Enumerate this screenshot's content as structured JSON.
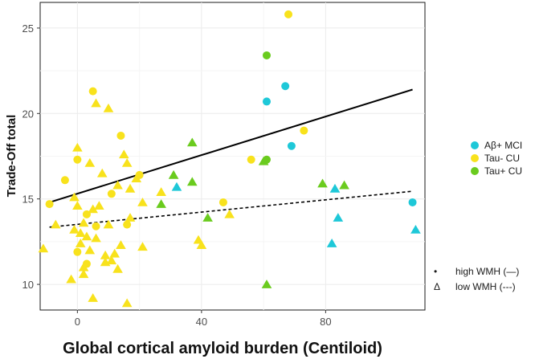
{
  "chart_data": {
    "type": "scatter",
    "xlabel": "Global cortical amyloid burden (Centiloid)",
    "ylabel": "Trade-Off total",
    "xlim": [
      -12,
      112
    ],
    "ylim": [
      8.5,
      26.5
    ],
    "x_ticks": [
      0,
      40,
      80
    ],
    "x_tick_labels": [
      "0",
      "40",
      "80"
    ],
    "y_ticks": [
      10,
      15,
      20,
      25
    ],
    "y_tick_labels": [
      "10",
      "15",
      "20",
      "25"
    ],
    "grid": true,
    "legend_placement": "right",
    "groups": [
      {
        "name": "Aβ+ MCI",
        "color": "#1ec8d8"
      },
      {
        "name": "Tau- CU",
        "color": "#f8e21c"
      },
      {
        "name": "Tau+ CU",
        "color": "#6acb1e"
      }
    ],
    "shape_legend": [
      {
        "symbol": "•",
        "label": "high WMH (—)"
      },
      {
        "symbol": "Δ",
        "label": "low WMH (---)"
      }
    ],
    "fit_lines": [
      {
        "name": "high WMH",
        "style": "solid",
        "x": [
          -9,
          108
        ],
        "y": [
          14.8,
          21.4
        ]
      },
      {
        "name": "low WMH",
        "style": "dashed",
        "x": [
          -9,
          108
        ],
        "y": [
          13.35,
          15.45
        ]
      }
    ],
    "points": [
      {
        "x": -9,
        "y": 14.7,
        "group": "Tau- CU",
        "wmh": "high"
      },
      {
        "x": -4,
        "y": 16.1,
        "group": "Tau- CU",
        "wmh": "high"
      },
      {
        "x": 0,
        "y": 17.3,
        "group": "Tau- CU",
        "wmh": "high"
      },
      {
        "x": 0,
        "y": 11.9,
        "group": "Tau- CU",
        "wmh": "high"
      },
      {
        "x": 3,
        "y": 14.1,
        "group": "Tau- CU",
        "wmh": "high"
      },
      {
        "x": 3,
        "y": 11.2,
        "group": "Tau- CU",
        "wmh": "high"
      },
      {
        "x": 5,
        "y": 21.3,
        "group": "Tau- CU",
        "wmh": "high"
      },
      {
        "x": 6,
        "y": 13.4,
        "group": "Tau- CU",
        "wmh": "high"
      },
      {
        "x": 11,
        "y": 15.3,
        "group": "Tau- CU",
        "wmh": "high"
      },
      {
        "x": 14,
        "y": 18.7,
        "group": "Tau- CU",
        "wmh": "high"
      },
      {
        "x": 16,
        "y": 13.5,
        "group": "Tau- CU",
        "wmh": "high"
      },
      {
        "x": 20,
        "y": 16.4,
        "group": "Tau- CU",
        "wmh": "high"
      },
      {
        "x": 47,
        "y": 14.8,
        "group": "Tau- CU",
        "wmh": "high"
      },
      {
        "x": 56,
        "y": 17.3,
        "group": "Tau- CU",
        "wmh": "high"
      },
      {
        "x": 68,
        "y": 25.8,
        "group": "Tau- CU",
        "wmh": "high"
      },
      {
        "x": 73,
        "y": 19.0,
        "group": "Tau- CU",
        "wmh": "high"
      },
      {
        "x": 61,
        "y": 23.4,
        "group": "Tau+ CU",
        "wmh": "high"
      },
      {
        "x": 61,
        "y": 17.3,
        "group": "Tau+ CU",
        "wmh": "high"
      },
      {
        "x": 61,
        "y": 20.7,
        "group": "Aβ+ MCI",
        "wmh": "high"
      },
      {
        "x": 67,
        "y": 21.6,
        "group": "Aβ+ MCI",
        "wmh": "high"
      },
      {
        "x": 69,
        "y": 18.1,
        "group": "Aβ+ MCI",
        "wmh": "high"
      },
      {
        "x": 108,
        "y": 14.8,
        "group": "Aβ+ MCI",
        "wmh": "high"
      },
      {
        "x": -11,
        "y": 12.1,
        "group": "Tau- CU",
        "wmh": "low"
      },
      {
        "x": -7,
        "y": 13.5,
        "group": "Tau- CU",
        "wmh": "low"
      },
      {
        "x": -2,
        "y": 10.3,
        "group": "Tau- CU",
        "wmh": "low"
      },
      {
        "x": -1,
        "y": 13.2,
        "group": "Tau- CU",
        "wmh": "low"
      },
      {
        "x": -1,
        "y": 15.1,
        "group": "Tau- CU",
        "wmh": "low"
      },
      {
        "x": 0,
        "y": 18.0,
        "group": "Tau- CU",
        "wmh": "low"
      },
      {
        "x": 0,
        "y": 14.6,
        "group": "Tau- CU",
        "wmh": "low"
      },
      {
        "x": 1,
        "y": 13.0,
        "group": "Tau- CU",
        "wmh": "low"
      },
      {
        "x": 1,
        "y": 12.4,
        "group": "Tau- CU",
        "wmh": "low"
      },
      {
        "x": 2,
        "y": 11.0,
        "group": "Tau- CU",
        "wmh": "low"
      },
      {
        "x": 2,
        "y": 10.6,
        "group": "Tau- CU",
        "wmh": "low"
      },
      {
        "x": 2,
        "y": 13.6,
        "group": "Tau- CU",
        "wmh": "low"
      },
      {
        "x": 3,
        "y": 12.8,
        "group": "Tau- CU",
        "wmh": "low"
      },
      {
        "x": 4,
        "y": 17.1,
        "group": "Tau- CU",
        "wmh": "low"
      },
      {
        "x": 4,
        "y": 12.0,
        "group": "Tau- CU",
        "wmh": "low"
      },
      {
        "x": 5,
        "y": 9.2,
        "group": "Tau- CU",
        "wmh": "low"
      },
      {
        "x": 5,
        "y": 14.4,
        "group": "Tau- CU",
        "wmh": "low"
      },
      {
        "x": 6,
        "y": 20.6,
        "group": "Tau- CU",
        "wmh": "low"
      },
      {
        "x": 6,
        "y": 12.7,
        "group": "Tau- CU",
        "wmh": "low"
      },
      {
        "x": 7,
        "y": 14.6,
        "group": "Tau- CU",
        "wmh": "low"
      },
      {
        "x": 8,
        "y": 16.5,
        "group": "Tau- CU",
        "wmh": "low"
      },
      {
        "x": 9,
        "y": 11.3,
        "group": "Tau- CU",
        "wmh": "low"
      },
      {
        "x": 9,
        "y": 11.7,
        "group": "Tau- CU",
        "wmh": "low"
      },
      {
        "x": 10,
        "y": 20.3,
        "group": "Tau- CU",
        "wmh": "low"
      },
      {
        "x": 10,
        "y": 13.5,
        "group": "Tau- CU",
        "wmh": "low"
      },
      {
        "x": 11,
        "y": 11.4,
        "group": "Tau- CU",
        "wmh": "low"
      },
      {
        "x": 12,
        "y": 11.8,
        "group": "Tau- CU",
        "wmh": "low"
      },
      {
        "x": 13,
        "y": 15.8,
        "group": "Tau- CU",
        "wmh": "low"
      },
      {
        "x": 13,
        "y": 10.9,
        "group": "Tau- CU",
        "wmh": "low"
      },
      {
        "x": 14,
        "y": 12.3,
        "group": "Tau- CU",
        "wmh": "low"
      },
      {
        "x": 15,
        "y": 17.6,
        "group": "Tau- CU",
        "wmh": "low"
      },
      {
        "x": 16,
        "y": 8.9,
        "group": "Tau- CU",
        "wmh": "low"
      },
      {
        "x": 16,
        "y": 17.1,
        "group": "Tau- CU",
        "wmh": "low"
      },
      {
        "x": 17,
        "y": 15.6,
        "group": "Tau- CU",
        "wmh": "low"
      },
      {
        "x": 17,
        "y": 13.9,
        "group": "Tau- CU",
        "wmh": "low"
      },
      {
        "x": 19,
        "y": 16.2,
        "group": "Tau- CU",
        "wmh": "low"
      },
      {
        "x": 21,
        "y": 14.8,
        "group": "Tau- CU",
        "wmh": "low"
      },
      {
        "x": 21,
        "y": 12.2,
        "group": "Tau- CU",
        "wmh": "low"
      },
      {
        "x": 27,
        "y": 15.4,
        "group": "Tau- CU",
        "wmh": "low"
      },
      {
        "x": 39,
        "y": 12.6,
        "group": "Tau- CU",
        "wmh": "low"
      },
      {
        "x": 40,
        "y": 12.3,
        "group": "Tau- CU",
        "wmh": "low"
      },
      {
        "x": 49,
        "y": 14.1,
        "group": "Tau- CU",
        "wmh": "low"
      },
      {
        "x": 27,
        "y": 14.7,
        "group": "Tau+ CU",
        "wmh": "low"
      },
      {
        "x": 31,
        "y": 16.4,
        "group": "Tau+ CU",
        "wmh": "low"
      },
      {
        "x": 37,
        "y": 18.3,
        "group": "Tau+ CU",
        "wmh": "low"
      },
      {
        "x": 37,
        "y": 16.0,
        "group": "Tau+ CU",
        "wmh": "low"
      },
      {
        "x": 42,
        "y": 13.9,
        "group": "Tau+ CU",
        "wmh": "low"
      },
      {
        "x": 60,
        "y": 17.2,
        "group": "Tau+ CU",
        "wmh": "low"
      },
      {
        "x": 61,
        "y": 10.0,
        "group": "Tau+ CU",
        "wmh": "low"
      },
      {
        "x": 79,
        "y": 15.9,
        "group": "Tau+ CU",
        "wmh": "low"
      },
      {
        "x": 86,
        "y": 15.8,
        "group": "Tau+ CU",
        "wmh": "low"
      },
      {
        "x": 32,
        "y": 15.7,
        "group": "Aβ+ MCI",
        "wmh": "low"
      },
      {
        "x": 82,
        "y": 12.4,
        "group": "Aβ+ MCI",
        "wmh": "low"
      },
      {
        "x": 83,
        "y": 15.6,
        "group": "Aβ+ MCI",
        "wmh": "low"
      },
      {
        "x": 84,
        "y": 13.9,
        "group": "Aβ+ MCI",
        "wmh": "low"
      },
      {
        "x": 109,
        "y": 13.2,
        "group": "Aβ+ MCI",
        "wmh": "low"
      }
    ]
  }
}
